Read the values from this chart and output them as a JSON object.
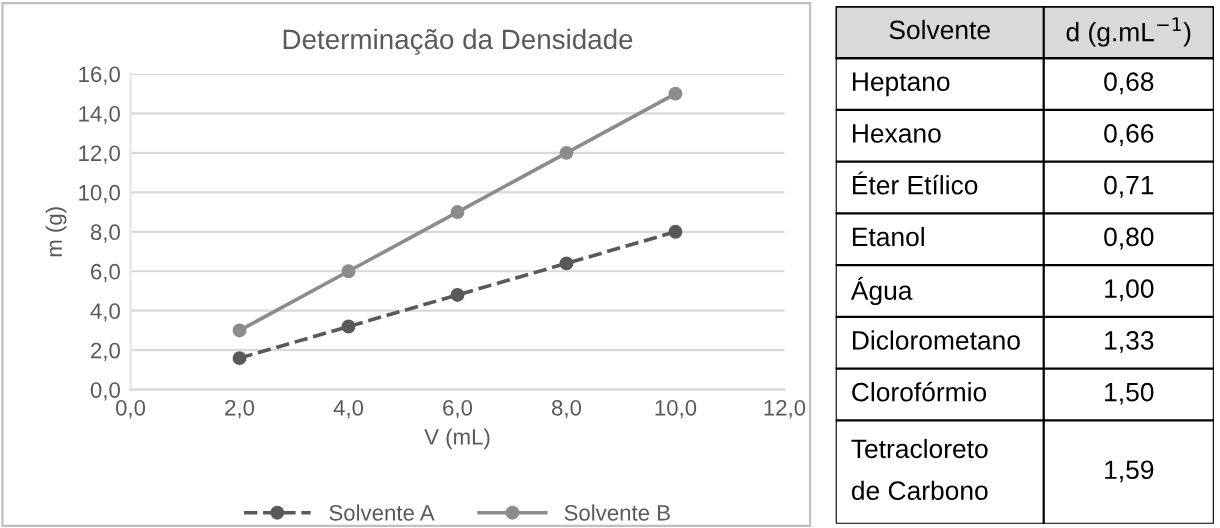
{
  "chart_data": [
    {
      "type": "line",
      "title": "Determinação da Densidade",
      "xlabel": "V (mL)",
      "ylabel": "m (g)",
      "x": [
        2,
        4,
        6,
        8,
        10
      ],
      "series": [
        {
          "name": "Solvente A",
          "color": "#595959",
          "values": [
            1.6,
            3.2,
            4.8,
            6.4,
            8.0
          ],
          "line_style": "dashed"
        },
        {
          "name": "Solvente B",
          "color": "#8c8c8c",
          "values": [
            3.0,
            6.0,
            9.0,
            12.0,
            15.0
          ],
          "line_style": "solid"
        }
      ],
      "marker": "circle",
      "xlim": [
        0,
        12
      ],
      "xticks": [
        {
          "value": 0,
          "label": "0,0"
        },
        {
          "value": 2,
          "label": "2,0"
        },
        {
          "value": 4,
          "label": "4,0"
        },
        {
          "value": 6,
          "label": "6,0"
        },
        {
          "value": 8,
          "label": "8,0"
        },
        {
          "value": 10,
          "label": "10,0"
        },
        {
          "value": 12,
          "label": "12,0"
        }
      ],
      "ylim": [
        0,
        16
      ],
      "yticks": [
        {
          "value": 0,
          "label": "0,0"
        },
        {
          "value": 2,
          "label": "2,0"
        },
        {
          "value": 4,
          "label": "4,0"
        },
        {
          "value": 6,
          "label": "6,0"
        },
        {
          "value": 8,
          "label": "8,0"
        },
        {
          "value": 10,
          "label": "10,0"
        },
        {
          "value": 12,
          "label": "12,0"
        },
        {
          "value": 14,
          "label": "14,0"
        },
        {
          "value": 16,
          "label": "16,0"
        }
      ],
      "grid": "y",
      "legend": "bottom"
    },
    {
      "type": "other",
      "xlabel": "Solvente",
      "ylabel": "d (g.mL$^{−1}$)",
      "categories": [
        "Heptano",
        "Hexano",
        "Éter Etílico",
        "Etanol",
        "Água",
        "Diclorometano",
        "Clorofórmio",
        "Tetracloreto\nde Carbono"
      ],
      "value_labels": [
        "0,68",
        "0,66",
        "0,71",
        "0,80",
        "1,00",
        "1,33",
        "1,50",
        "1,59"
      ]
    }
  ]
}
